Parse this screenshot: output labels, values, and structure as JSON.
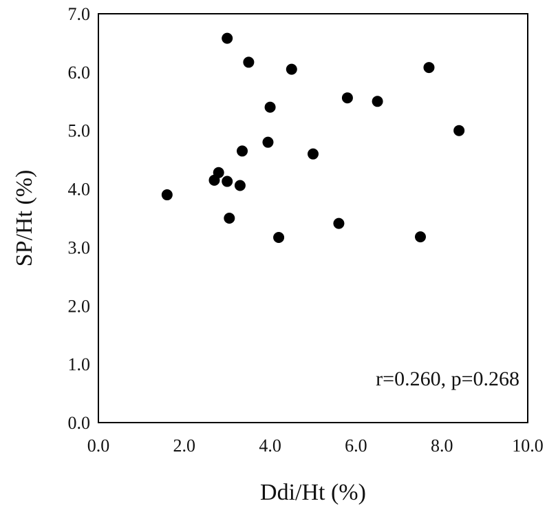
{
  "chart_data": {
    "type": "scatter",
    "title": "",
    "xlabel": "Ddi/Ht (%)",
    "ylabel": "SP/Ht (%)",
    "xlim": [
      0,
      10
    ],
    "ylim": [
      0,
      7
    ],
    "xticks": [
      "0.0",
      "2.0",
      "4.0",
      "6.0",
      "8.0",
      "10.0"
    ],
    "yticks": [
      "0.0",
      "1.0",
      "2.0",
      "3.0",
      "4.0",
      "5.0",
      "6.0",
      "7.0"
    ],
    "grid": false,
    "legend": "none",
    "annotation": "r=0.260, p=0.268",
    "marker_color": "#000000",
    "series": [
      {
        "points": [
          {
            "x": 1.6,
            "y": 3.9
          },
          {
            "x": 2.7,
            "y": 4.15
          },
          {
            "x": 2.8,
            "y": 4.28
          },
          {
            "x": 3.0,
            "y": 6.58
          },
          {
            "x": 3.0,
            "y": 4.13
          },
          {
            "x": 3.05,
            "y": 3.5
          },
          {
            "x": 3.3,
            "y": 4.06
          },
          {
            "x": 3.35,
            "y": 4.65
          },
          {
            "x": 3.5,
            "y": 6.17
          },
          {
            "x": 3.95,
            "y": 4.8
          },
          {
            "x": 4.0,
            "y": 5.4
          },
          {
            "x": 4.2,
            "y": 3.17
          },
          {
            "x": 4.5,
            "y": 6.05
          },
          {
            "x": 5.0,
            "y": 4.6
          },
          {
            "x": 5.6,
            "y": 3.41
          },
          {
            "x": 5.8,
            "y": 5.56
          },
          {
            "x": 6.5,
            "y": 5.5
          },
          {
            "x": 7.5,
            "y": 3.18
          },
          {
            "x": 7.7,
            "y": 6.08
          },
          {
            "x": 8.4,
            "y": 5.0
          }
        ]
      }
    ]
  }
}
